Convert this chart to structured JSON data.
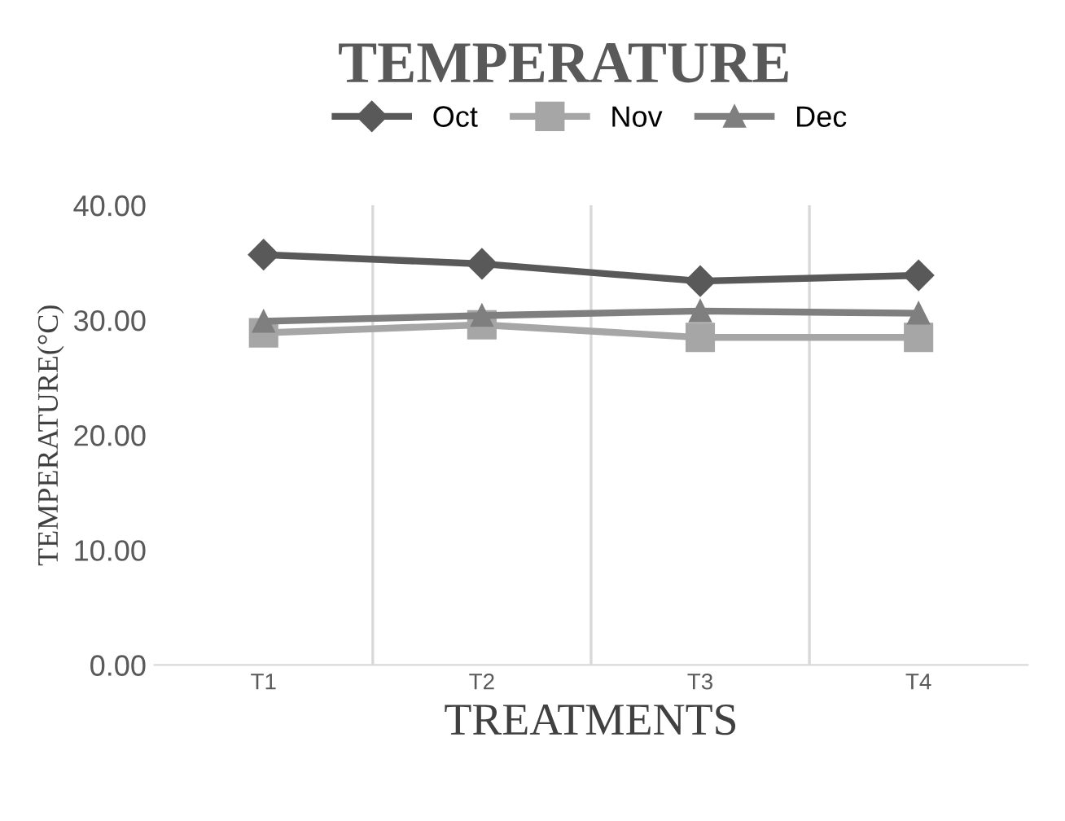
{
  "chart_data": {
    "type": "line",
    "title": "TEMPERATURE",
    "xlabel": "TREATMENTS",
    "ylabel": "TEMPERATURE(°C)",
    "categories": [
      "T1",
      "T2",
      "T3",
      "T4"
    ],
    "series": [
      {
        "name": "Oct",
        "color": "#595959",
        "marker": "diamond",
        "values": [
          35.7,
          34.9,
          33.4,
          33.9
        ]
      },
      {
        "name": "Nov",
        "color": "#a6a6a6",
        "marker": "square",
        "values": [
          28.9,
          29.6,
          28.5,
          28.5
        ]
      },
      {
        "name": "Dec",
        "color": "#7f7f7f",
        "marker": "triangle",
        "values": [
          29.9,
          30.4,
          30.8,
          30.6
        ]
      }
    ],
    "ylim": [
      0,
      40
    ],
    "yticks": [
      {
        "value": 0,
        "label": "0.00"
      },
      {
        "value": 10,
        "label": "10.00"
      },
      {
        "value": 20,
        "label": "20.00"
      },
      {
        "value": 30,
        "label": "30.00"
      },
      {
        "value": 40,
        "label": "40.00"
      }
    ],
    "grid": "x",
    "legend": "top",
    "line_style": "solid"
  }
}
